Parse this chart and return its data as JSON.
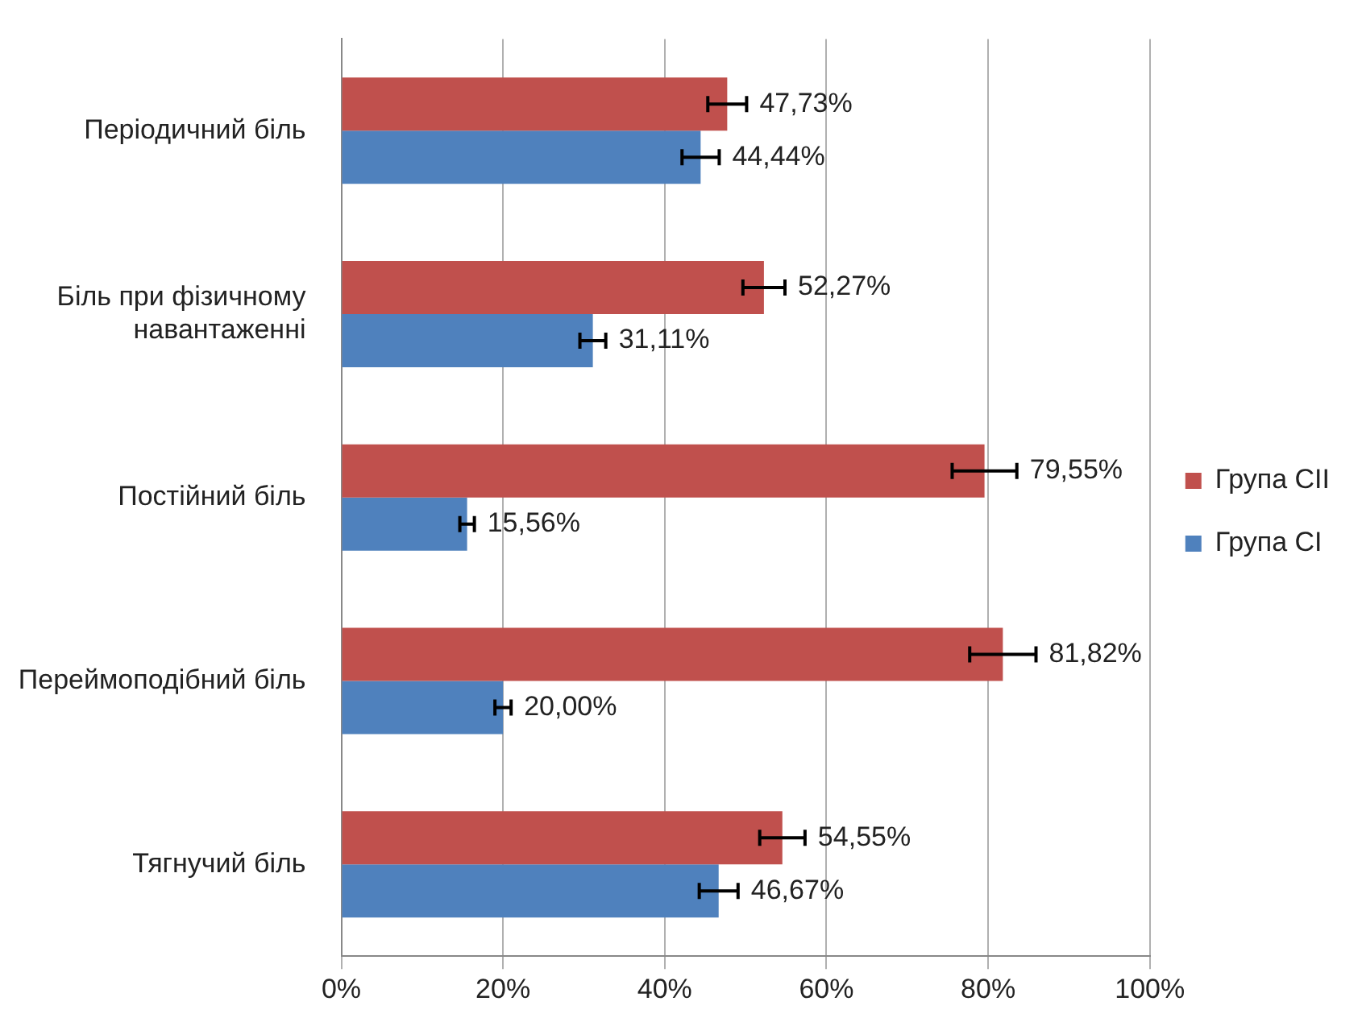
{
  "chart_data": {
    "type": "bar",
    "orientation": "horizontal",
    "categories": [
      "Періодичний біль",
      "Біль при фізичному навантаженні",
      "Постійний біль",
      "Переймоподібний біль",
      "Тягнучий біль"
    ],
    "series": [
      {
        "name": "Група CII",
        "color": "#c0504d",
        "values": [
          47.73,
          52.27,
          79.55,
          81.82,
          54.55
        ],
        "errors": [
          2.4,
          2.6,
          4,
          4.1,
          2.8
        ],
        "value_labels": [
          "47,73%",
          "52,27%",
          "79,55%",
          "81,82%",
          "54,55%"
        ]
      },
      {
        "name": "Група CI",
        "color": "#4f81bd",
        "values": [
          44.44,
          31.11,
          15.56,
          20,
          46.67
        ],
        "errors": [
          2.3,
          1.6,
          0.9,
          1,
          2.4
        ],
        "value_labels": [
          "44,44%",
          "31,11%",
          "15,56%",
          "20,00%",
          "46,67%"
        ]
      }
    ],
    "xlim": [
      0,
      100
    ],
    "xticks": [
      {
        "value": 0,
        "label": "0%"
      },
      {
        "value": 20,
        "label": "20%"
      },
      {
        "value": 40,
        "label": "40%"
      },
      {
        "value": 60,
        "label": "60%"
      },
      {
        "value": 80,
        "label": "80%"
      },
      {
        "value": 100,
        "label": "100%"
      }
    ],
    "grid": "x",
    "legend": "right"
  }
}
